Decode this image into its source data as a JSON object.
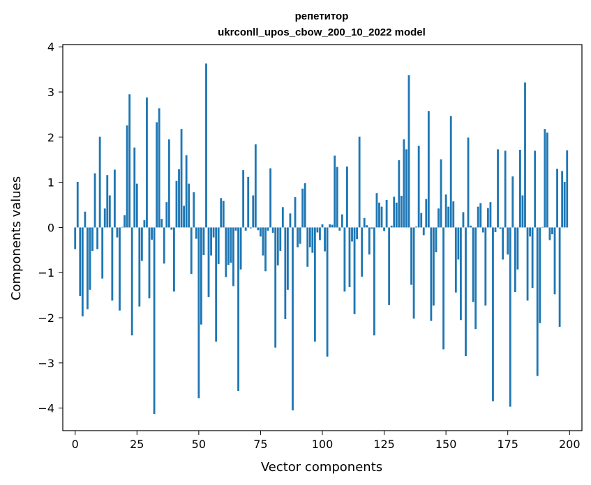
{
  "chart_data": {
    "type": "bar",
    "title_line1": "репетитор",
    "title_line2": "ukrconll_upos_cbow_200_10_2022 model",
    "xlabel": "Vector components",
    "ylabel": "Components values",
    "xlim": [
      -5,
      205
    ],
    "ylim": [
      -4.5,
      4.05
    ],
    "xticks": [
      0,
      25,
      50,
      75,
      100,
      125,
      150,
      175,
      200
    ],
    "yticks": [
      -4,
      -3,
      -2,
      -1,
      0,
      1,
      2,
      3,
      4
    ],
    "ytick_labels": [
      "−4",
      "−3",
      "−2",
      "−1",
      "0",
      "1",
      "2",
      "3",
      "4"
    ],
    "grid": false,
    "bar_color": "#1f77b4",
    "x": [
      0,
      1,
      2,
      3,
      4,
      5,
      6,
      7,
      8,
      9,
      10,
      11,
      12,
      13,
      14,
      15,
      16,
      17,
      18,
      19,
      20,
      21,
      22,
      23,
      24,
      25,
      26,
      27,
      28,
      29,
      30,
      31,
      32,
      33,
      34,
      35,
      36,
      37,
      38,
      39,
      40,
      41,
      42,
      43,
      44,
      45,
      46,
      47,
      48,
      49,
      50,
      51,
      52,
      53,
      54,
      55,
      56,
      57,
      58,
      59,
      60,
      61,
      62,
      63,
      64,
      65,
      66,
      67,
      68,
      69,
      70,
      71,
      72,
      73,
      74,
      75,
      76,
      77,
      78,
      79,
      80,
      81,
      82,
      83,
      84,
      85,
      86,
      87,
      88,
      89,
      90,
      91,
      92,
      93,
      94,
      95,
      96,
      97,
      98,
      99,
      100,
      101,
      102,
      103,
      104,
      105,
      106,
      107,
      108,
      109,
      110,
      111,
      112,
      113,
      114,
      115,
      116,
      117,
      118,
      119,
      120,
      121,
      122,
      123,
      124,
      125,
      126,
      127,
      128,
      129,
      130,
      131,
      132,
      133,
      134,
      135,
      136,
      137,
      138,
      139,
      140,
      141,
      142,
      143,
      144,
      145,
      146,
      147,
      148,
      149,
      150,
      151,
      152,
      153,
      154,
      155,
      156,
      157,
      158,
      159,
      160,
      161,
      162,
      163,
      164,
      165,
      166,
      167,
      168,
      169,
      170,
      171,
      172,
      173,
      174,
      175,
      176,
      177,
      178,
      179,
      180,
      181,
      182,
      183,
      184,
      185,
      186,
      187,
      188,
      189,
      190,
      191,
      192,
      193,
      194,
      195,
      196,
      197,
      198,
      199
    ],
    "values": [
      -0.48,
      1.01,
      -1.52,
      -1.97,
      0.35,
      -1.81,
      -1.38,
      -0.52,
      1.2,
      -0.48,
      2.01,
      -1.13,
      0.42,
      1.16,
      0.71,
      -1.62,
      1.28,
      -0.22,
      -1.84,
      0.01,
      0.27,
      2.26,
      2.95,
      -2.39,
      1.77,
      0.97,
      -1.75,
      -0.74,
      0.16,
      2.88,
      -1.57,
      -0.27,
      -4.13,
      2.33,
      2.64,
      0.19,
      -0.8,
      0.56,
      1.95,
      -0.05,
      -1.42,
      1.03,
      1.29,
      2.18,
      0.48,
      1.6,
      0.97,
      -1.03,
      0.78,
      -0.25,
      -3.78,
      -2.15,
      -0.61,
      3.63,
      -1.54,
      -0.62,
      -0.22,
      -2.53,
      -0.81,
      0.65,
      0.59,
      -1.1,
      -0.83,
      -0.78,
      -1.3,
      -0.07,
      -3.62,
      -0.93,
      1.27,
      -0.07,
      1.12,
      -0.02,
      0.71,
      1.84,
      -0.06,
      -0.2,
      -0.62,
      -0.97,
      -0.07,
      1.31,
      -0.12,
      -2.66,
      -0.84,
      -0.52,
      0.45,
      -2.03,
      -1.38,
      0.31,
      -4.05,
      0.67,
      -0.44,
      -0.36,
      0.86,
      0.98,
      -0.87,
      -0.44,
      -0.56,
      -2.53,
      -0.11,
      -0.28,
      0.07,
      -0.53,
      -2.86,
      0.07,
      0.06,
      1.59,
      1.34,
      -0.07,
      0.29,
      -1.42,
      1.35,
      -1.32,
      -0.31,
      -1.92,
      -0.26,
      2.01,
      -1.09,
      0.21,
      0.05,
      -0.6,
      -0.03,
      -2.39,
      0.76,
      0.55,
      0.46,
      -0.08,
      0.61,
      -1.72,
      0.04,
      0.68,
      0.55,
      1.49,
      0.7,
      1.95,
      1.73,
      3.37,
      -1.27,
      -2.02,
      0.02,
      1.81,
      0.32,
      -0.17,
      0.63,
      2.58,
      -2.07,
      -1.73,
      -0.55,
      0.42,
      1.51,
      -2.7,
      0.73,
      0.46,
      2.47,
      0.58,
      -1.44,
      -0.71,
      -2.05,
      0.34,
      -2.85,
      1.99,
      0.04,
      -1.65,
      -2.25,
      0.46,
      0.54,
      -0.11,
      -1.73,
      0.43,
      0.56,
      -3.85,
      -0.1,
      1.73,
      -0.03,
      -0.71,
      1.7,
      -0.6,
      -3.97,
      1.13,
      -1.43,
      -0.93,
      1.72,
      0.71,
      3.21,
      -1.62,
      -0.2,
      -1.34,
      1.7,
      -3.29,
      -2.12,
      0.01,
      2.18,
      2.1,
      -0.28,
      -0.15,
      -1.48,
      1.3,
      -2.2,
      1.25,
      1.01,
      1.71
    ]
  }
}
